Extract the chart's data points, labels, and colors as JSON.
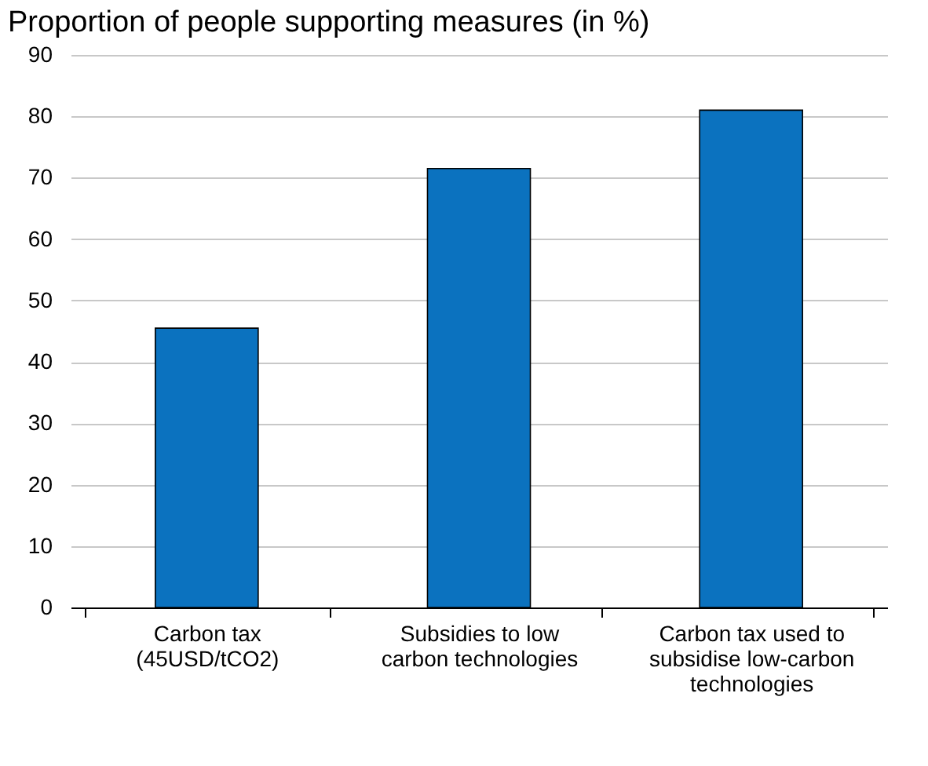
{
  "chart_data": {
    "type": "bar",
    "title": "Proportion of people supporting measures (in %)",
    "categories": [
      "Carbon tax (45USD/tCO2)",
      "Subsidies to low carbon technologies",
      "Carbon tax used to subsidise low-carbon technologies"
    ],
    "values": [
      45.5,
      71.5,
      81
    ],
    "color": "#0b72bf",
    "ylim": [
      0,
      90
    ],
    "yticks": [
      0,
      10,
      20,
      30,
      40,
      50,
      60,
      70,
      80,
      90
    ],
    "grid": "y"
  }
}
